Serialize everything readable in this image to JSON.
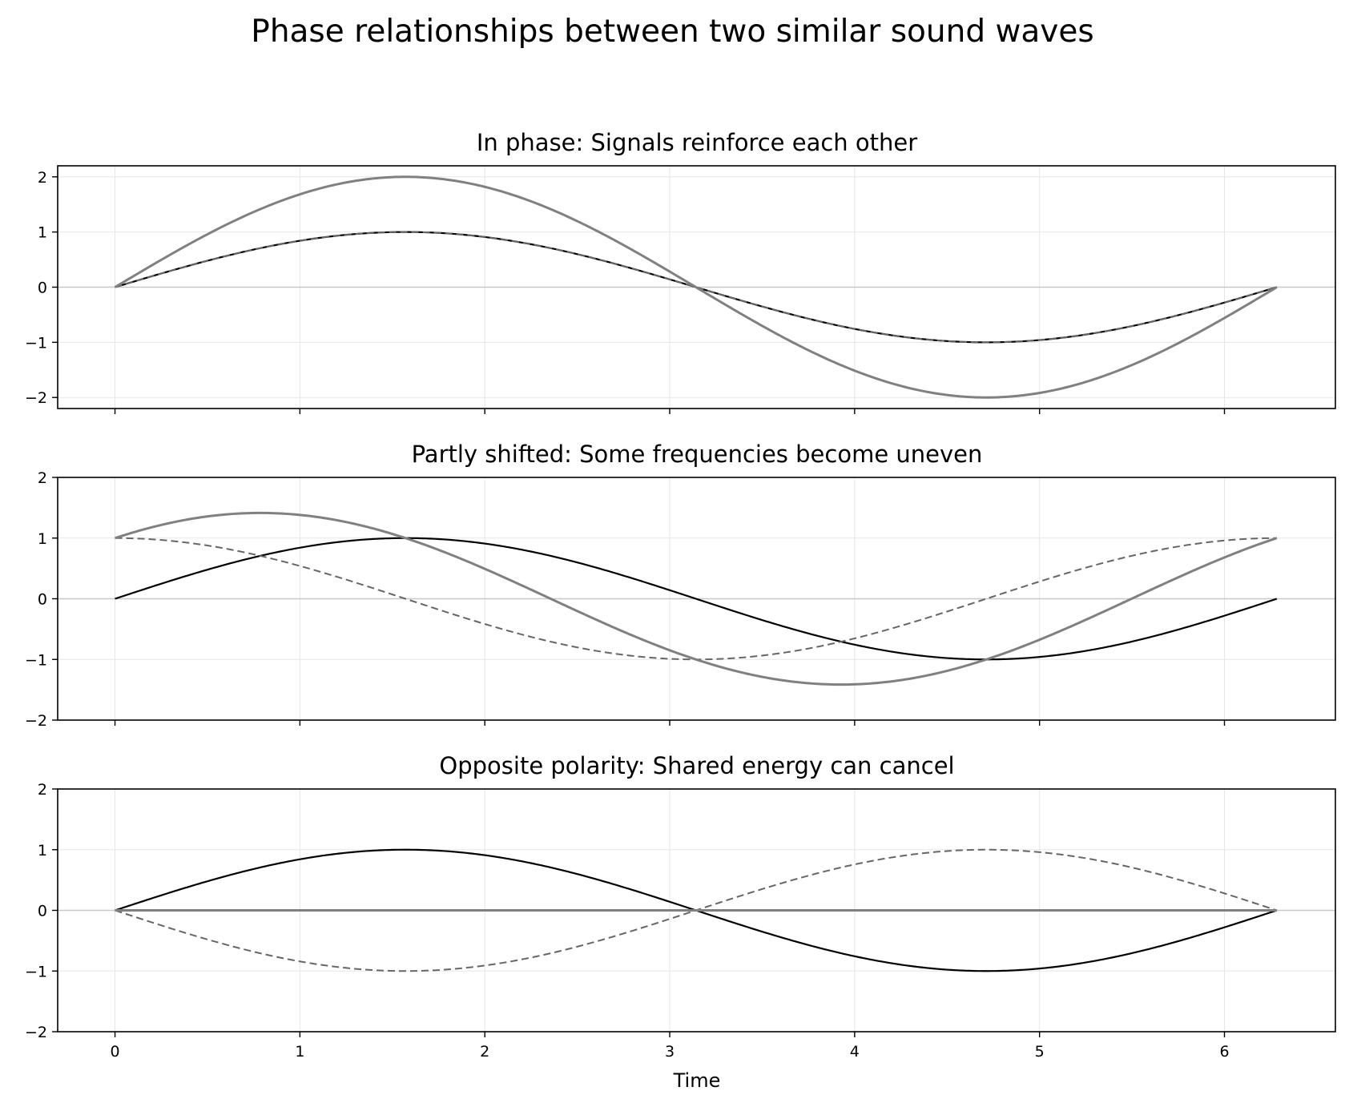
{
  "figure": {
    "title": "Phase relationships between two similar sound waves"
  },
  "chart_data": [
    {
      "type": "line",
      "title": "In phase: Signals reinforce each other",
      "xlabel": "",
      "ylabel": "",
      "x_range": [
        0,
        6.2832
      ],
      "xlim": [
        -0.31,
        6.6
      ],
      "ylim": [
        -2.2,
        2.2
      ],
      "yticks": [
        -2,
        -1,
        0,
        1,
        2
      ],
      "xticks": [
        0,
        1,
        2,
        3,
        4,
        5,
        6
      ],
      "show_xticklabels": false,
      "grid": true,
      "series": [
        {
          "function": "sin",
          "amplitude": 1,
          "phase": 0,
          "color": "#000000",
          "style": "solid",
          "width": 2.2
        },
        {
          "function": "sin",
          "amplitude": 1,
          "phase": 0,
          "color": "#666666",
          "style": "dashed",
          "width": 2
        },
        {
          "function": "sin",
          "amplitude": 2,
          "phase": 0,
          "color": "#808080",
          "style": "solid",
          "width": 3
        }
      ]
    },
    {
      "type": "line",
      "title": "Partly shifted: Some frequencies become uneven",
      "xlabel": "",
      "ylabel": "",
      "x_range": [
        0,
        6.2832
      ],
      "xlim": [
        -0.31,
        6.6
      ],
      "ylim": [
        -2,
        2
      ],
      "yticks": [
        -2,
        -1,
        0,
        1,
        2
      ],
      "xticks": [
        0,
        1,
        2,
        3,
        4,
        5,
        6
      ],
      "show_xticklabels": false,
      "grid": true,
      "series": [
        {
          "function": "sin",
          "amplitude": 1,
          "phase": 0,
          "color": "#000000",
          "style": "solid",
          "width": 2.2
        },
        {
          "function": "cos",
          "amplitude": 1,
          "phase": 0,
          "color": "#666666",
          "style": "dashed",
          "width": 2
        },
        {
          "function": "sin+cos",
          "amplitude": 1,
          "phase": 0,
          "color": "#808080",
          "style": "solid",
          "width": 3
        }
      ]
    },
    {
      "type": "line",
      "title": "Opposite polarity: Shared energy can cancel",
      "xlabel": "Time",
      "ylabel": "",
      "x_range": [
        0,
        6.2832
      ],
      "xlim": [
        -0.31,
        6.6
      ],
      "ylim": [
        -2,
        2
      ],
      "yticks": [
        -2,
        -1,
        0,
        1,
        2
      ],
      "xticks": [
        0,
        1,
        2,
        3,
        4,
        5,
        6
      ],
      "show_xticklabels": true,
      "grid": true,
      "series": [
        {
          "function": "sin",
          "amplitude": 1,
          "phase": 0,
          "color": "#000000",
          "style": "solid",
          "width": 2.2
        },
        {
          "function": "sin",
          "amplitude": -1,
          "phase": 0,
          "color": "#666666",
          "style": "dashed",
          "width": 2
        },
        {
          "function": "zero",
          "amplitude": 0,
          "phase": 0,
          "color": "#808080",
          "style": "solid",
          "width": 3
        }
      ]
    }
  ]
}
